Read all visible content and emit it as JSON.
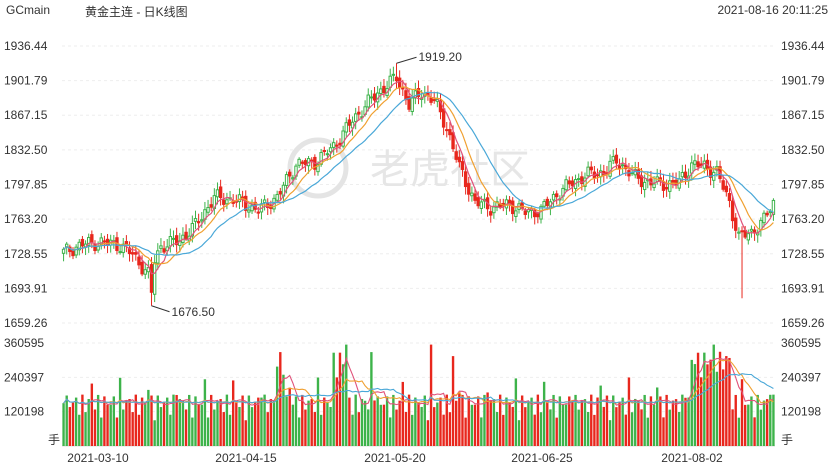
{
  "header": {
    "symbol": "GCmain",
    "title": "黄金主连 - 日K线图",
    "datetime": "2021-08-16 20:11:25"
  },
  "watermark": "老虎社区",
  "colors": {
    "up": "#3db34a",
    "down": "#e8271d",
    "ma5": "#e0527a",
    "ma10": "#f0a030",
    "ma20": "#4aa8d8"
  },
  "chart_data": [
    {
      "type": "candlestick",
      "price_ticks": [
        "1936.44",
        "1901.79",
        "1867.15",
        "1832.50",
        "1797.85",
        "1763.20",
        "1728.55",
        "1693.91",
        "1659.26"
      ],
      "ylim": [
        1659.26,
        1936.44
      ],
      "annotations": [
        {
          "label": "1919.20",
          "value": 1919.2
        },
        {
          "label": "1676.50",
          "value": 1676.5
        }
      ],
      "x_labels": [
        "2021-03-10",
        "2021-04-15",
        "2021-05-20",
        "2021-06-25",
        "2021-08-02"
      ],
      "moving_averages": [
        "MA5",
        "MA10",
        "MA20"
      ]
    },
    {
      "type": "bar",
      "volume_ticks": [
        "360595",
        "240397",
        "120198"
      ],
      "unit": "手",
      "ylim": [
        0,
        360595
      ]
    }
  ]
}
